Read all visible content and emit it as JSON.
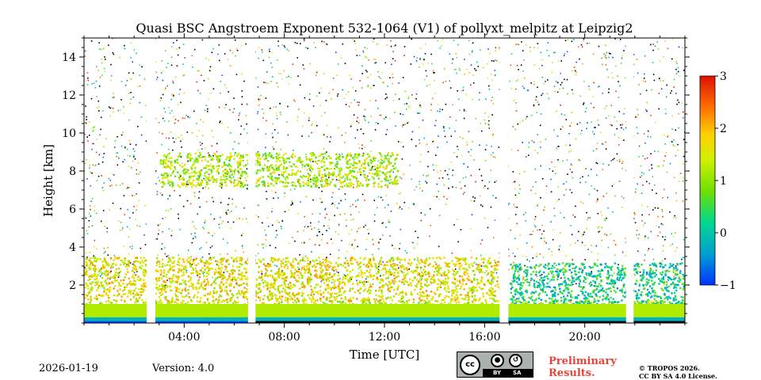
{
  "chart_data": {
    "type": "heatmap",
    "title": "Quasi BSC Angstroem Exponent 532-1064 (V1) of pollyxt_melpitz at Leipzig2",
    "xlabel": "Time [UTC]",
    "ylabel": "Height [km]",
    "x_range_hours": [
      0,
      24
    ],
    "ylim": [
      0,
      15
    ],
    "xticks": [
      {
        "value": 4,
        "label": "04:00"
      },
      {
        "value": 8,
        "label": "08:00"
      },
      {
        "value": 12,
        "label": "12:00"
      },
      {
        "value": 16,
        "label": "16:00"
      },
      {
        "value": 20,
        "label": "20:00"
      }
    ],
    "yticks": [
      {
        "value": 2,
        "label": "2"
      },
      {
        "value": 4,
        "label": "4"
      },
      {
        "value": 6,
        "label": "6"
      },
      {
        "value": 8,
        "label": "8"
      },
      {
        "value": 10,
        "label": "10"
      },
      {
        "value": 12,
        "label": "12"
      },
      {
        "value": 14,
        "label": "14"
      }
    ],
    "colorbar": {
      "range": [
        -1,
        3
      ],
      "ticks": [
        {
          "value": 3,
          "label": "3"
        },
        {
          "value": 2,
          "label": "2"
        },
        {
          "value": 1,
          "label": "1"
        },
        {
          "value": 0,
          "label": "0"
        },
        {
          "value": -1,
          "label": "−1"
        }
      ]
    },
    "data_gaps_hours": [
      [
        2.5,
        2.85
      ],
      [
        6.55,
        6.85
      ],
      [
        16.6,
        16.95
      ],
      [
        21.65,
        21.95
      ]
    ],
    "layers": [
      {
        "name": "near-surface layer",
        "x": [
          0,
          24
        ],
        "height_km": [
          0,
          1.2
        ],
        "value": 1.3
      },
      {
        "name": "boundary layer",
        "x": [
          0,
          16.6
        ],
        "height_km": [
          1.2,
          3.5
        ],
        "value": 1.6
      },
      {
        "name": "elevated aerosol layer",
        "x": [
          3,
          12.5
        ],
        "height_km": [
          7.2,
          9.0
        ],
        "value": 1.2
      },
      {
        "name": "evening residual layer",
        "x": [
          17,
          24
        ],
        "height_km": [
          0.5,
          3.2
        ],
        "value": 0.2
      }
    ]
  },
  "footer": {
    "date": "2026-01-19",
    "version": "Version: 4.0",
    "preliminary_line1": "Preliminary",
    "preliminary_line2": "Results.",
    "copyright_line1": "© TROPOS 2026.",
    "copyright_line2": "CC BY SA 4.0 License.",
    "cc_badge": "cc",
    "cc_by": "BY",
    "cc_sa": "SA"
  }
}
